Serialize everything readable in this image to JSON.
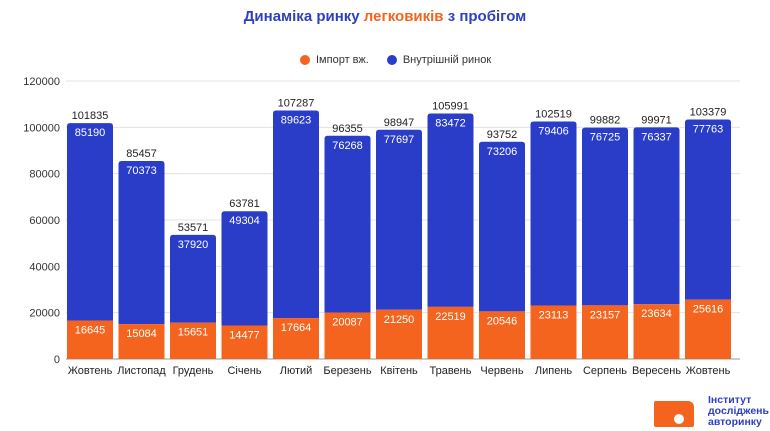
{
  "title": {
    "part1": "Динаміка ринку ",
    "accent": "легковиків",
    "part2": " з пробігом"
  },
  "legend": [
    {
      "label": "Імпорт вж.",
      "color": "#f5641e"
    },
    {
      "label": "Внутрішній ринок",
      "color": "#2a3dc8"
    }
  ],
  "logo": {
    "line1": "Інститут",
    "line2": "досліджень",
    "line3": "авторинку"
  },
  "chart_data": {
    "type": "bar",
    "stacked": true,
    "categories": [
      "Жовтень",
      "Листопад",
      "Грудень",
      "Січень",
      "Лютий",
      "Березень",
      "Квітень",
      "Травень",
      "Червень",
      "Липень",
      "Серпень",
      "Вересень",
      "Жовтень"
    ],
    "series": [
      {
        "name": "Імпорт вж.",
        "color": "#f5641e",
        "values": [
          16645,
          15084,
          15651,
          14477,
          17664,
          20087,
          21250,
          22519,
          20546,
          23113,
          23157,
          23634,
          25616
        ]
      },
      {
        "name": "Внутрішній ринок",
        "color": "#2a3dc8",
        "values": [
          85190,
          70373,
          37920,
          49304,
          89623,
          76268,
          77697,
          83472,
          73206,
          79406,
          76725,
          76337,
          77763
        ]
      }
    ],
    "totals": [
      101835,
      85457,
      53571,
      63781,
      107287,
      96355,
      98947,
      105991,
      93752,
      102519,
      99882,
      99971,
      103379
    ],
    "ylim": [
      0,
      120000
    ],
    "yticks": [
      0,
      20000,
      40000,
      60000,
      80000,
      100000,
      120000
    ],
    "grid": true,
    "legend_position": "top"
  }
}
